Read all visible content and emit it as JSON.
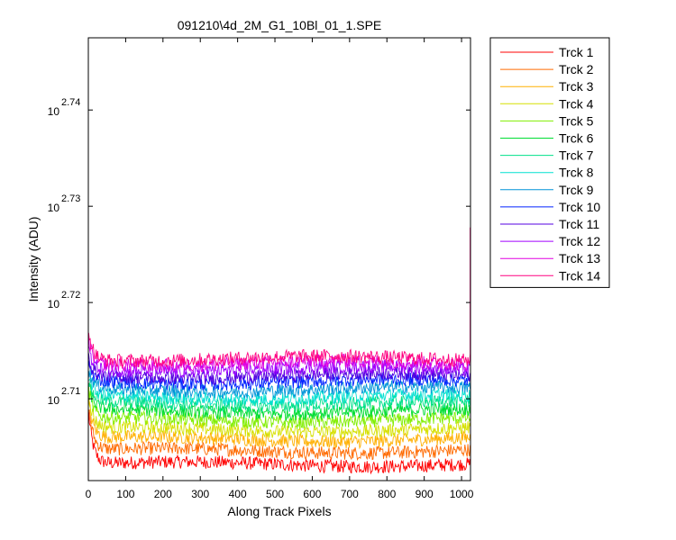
{
  "chart_data": {
    "type": "line",
    "title": "091210\\4d_2M_G1_10Bl_01_1.SPE",
    "xlabel": "Along Track Pixels",
    "ylabel": "Intensity (ADU)",
    "xlim": [
      0,
      1024
    ],
    "ylim_log10": [
      2.7015,
      2.7475
    ],
    "y_scale": "log",
    "xticks": [
      0,
      100,
      200,
      300,
      400,
      500,
      600,
      700,
      800,
      900,
      1000
    ],
    "xtick_labels": [
      "0",
      "100",
      "200",
      "300",
      "400",
      "500",
      "600",
      "700",
      "800",
      "900",
      "1000"
    ],
    "yticks_log10": [
      2.71,
      2.72,
      2.73,
      2.74
    ],
    "ytick_base": "10",
    "ytick_exponents": [
      "2.71",
      "2.72",
      "2.73",
      "2.74"
    ],
    "grid": false,
    "legend": "outside-right",
    "noise_amplitude_log10": 0.0007,
    "series": [
      {
        "name": "Trck 1",
        "color": "#ff0000",
        "baseline_log10": 2.7032,
        "start_log10": 2.709
      },
      {
        "name": "Trck 2",
        "color": "#ff6a00",
        "baseline_log10": 2.7046,
        "start_log10": 2.7095
      },
      {
        "name": "Trck 3",
        "color": "#ffb000",
        "baseline_log10": 2.7058,
        "start_log10": 2.71
      },
      {
        "name": "Trck 4",
        "color": "#d6e000",
        "baseline_log10": 2.7068,
        "start_log10": 2.7105
      },
      {
        "name": "Trck 5",
        "color": "#80ee00",
        "baseline_log10": 2.7078,
        "start_log10": 2.711
      },
      {
        "name": "Trck 6",
        "color": "#00dd33",
        "baseline_log10": 2.7087,
        "start_log10": 2.7115
      },
      {
        "name": "Trck 7",
        "color": "#00e08a",
        "baseline_log10": 2.7095,
        "start_log10": 2.712
      },
      {
        "name": "Trck 8",
        "color": "#00e0d0",
        "baseline_log10": 2.7102,
        "start_log10": 2.7125
      },
      {
        "name": "Trck 9",
        "color": "#0094d8",
        "baseline_log10": 2.711,
        "start_log10": 2.713
      },
      {
        "name": "Trck 10",
        "color": "#0022ff",
        "baseline_log10": 2.7118,
        "start_log10": 2.7138
      },
      {
        "name": "Trck 11",
        "color": "#5500e0",
        "baseline_log10": 2.7124,
        "start_log10": 2.7145
      },
      {
        "name": "Trck 12",
        "color": "#a000ff",
        "baseline_log10": 2.7131,
        "start_log10": 2.7155
      },
      {
        "name": "Trck 13",
        "color": "#e000e0",
        "baseline_log10": 2.7137,
        "start_log10": 2.7165
      },
      {
        "name": "Trck 14",
        "color": "#ff0080",
        "baseline_log10": 2.7142,
        "start_log10": 2.7175,
        "end_spike_log10": 2.7278
      }
    ]
  }
}
